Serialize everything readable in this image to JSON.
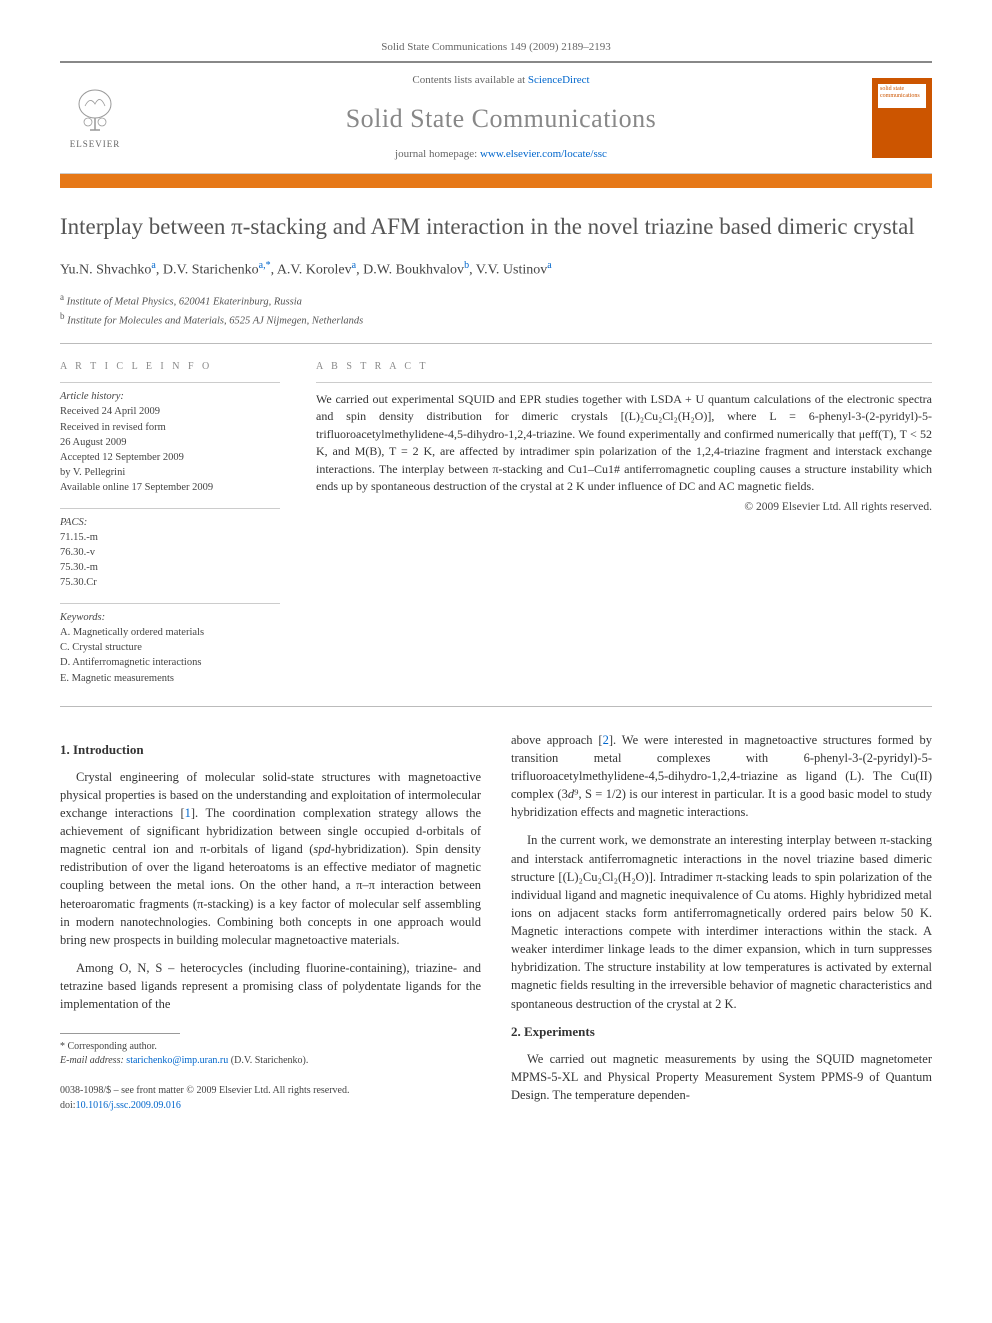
{
  "journal_ref": "Solid State Communications 149 (2009) 2189–2193",
  "header": {
    "contents_prefix": "Contents lists available at ",
    "contents_link": "ScienceDirect",
    "journal_name": "Solid State Communications",
    "homepage_prefix": "journal homepage: ",
    "homepage_url": "www.elsevier.com/locate/ssc",
    "publisher": "ELSEVIER",
    "cover_label": "solid state communications"
  },
  "title": "Interplay between π-stacking and AFM interaction in the novel triazine based dimeric crystal",
  "authors_html": "Yu.N. Shvachko<sup>a</sup>, D.V. Starichenko<sup>a,*</sup>, A.V. Korolev<sup>a</sup>, D.W. Boukhvalov<sup>b</sup>, V.V. Ustinov<sup>a</sup>",
  "affiliations": [
    {
      "sup": "a",
      "text": "Institute of Metal Physics, 620041 Ekaterinburg, Russia"
    },
    {
      "sup": "b",
      "text": "Institute for Molecules and Materials, 6525 AJ Nijmegen, Netherlands"
    }
  ],
  "article_info": {
    "heading": "A R T I C L E   I N F O",
    "history_label": "Article history:",
    "history": [
      "Received 24 April 2009",
      "Received in revised form",
      "26 August 2009",
      "Accepted 12 September 2009",
      "by V. Pellegrini",
      "Available online 17 September 2009"
    ],
    "pacs_label": "PACS:",
    "pacs": [
      "71.15.-m",
      "76.30.-v",
      "75.30.-m",
      "75.30.Cr"
    ],
    "keywords_label": "Keywords:",
    "keywords": [
      "A. Magnetically ordered materials",
      "C. Crystal structure",
      "D. Antiferromagnetic interactions",
      "E. Magnetic measurements"
    ]
  },
  "abstract": {
    "heading": "A B S T R A C T",
    "text": "We carried out experimental SQUID and EPR studies together with LSDA + U quantum calculations of the electronic spectra and spin density distribution for dimeric crystals [(L)₂Cu₂Cl₂(H₂O)], where L = 6-phenyl-3-(2-pyridyl)-5-trifluoroacetylmethylidene-4,5-dihydro-1,2,4-triazine. We found experimentally and confirmed numerically that μeff(T), T < 52 K, and M(B), T = 2 K, are affected by intradimer spin polarization of the 1,2,4-triazine fragment and interstack exchange interactions. The interplay between π-stacking and Cu1–Cu1# antiferromagnetic coupling causes a structure instability which ends up by spontaneous destruction of the crystal at 2 K under influence of DC and AC magnetic fields.",
    "copyright": "© 2009 Elsevier Ltd. All rights reserved."
  },
  "sections": {
    "intro_heading": "1. Introduction",
    "intro_p1": "Crystal engineering of molecular solid-state structures with magnetoactive physical properties is based on the understanding and exploitation of intermolecular exchange interactions [1]. The coordination complexation strategy allows the achievement of significant hybridization between single occupied d-orbitals of magnetic central ion and π-orbitals of ligand (spd-hybridization). Spin density redistribution of over the ligand heteroatoms is an effective mediator of magnetic coupling between the metal ions. On the other hand, a π–π interaction between heteroaromatic fragments (π-stacking) is a key factor of molecular self assembling in modern nanotechnologies. Combining both concepts in one approach would bring new prospects in building molecular magnetoactive materials.",
    "intro_p2": "Among O, N, S – heterocycles (including fluorine-containing), triazine- and tetrazine based ligands represent a promising class of polydentate ligands for the implementation of the",
    "intro_p3": "above approach [2]. We were interested in magnetoactive structures formed by transition metal complexes with 6-phenyl-3-(2-pyridyl)-5-trifluoroacetylmethylidene-4,5-dihydro-1,2,4-triazine as ligand (L). The Cu(II) complex (3d⁹, S = 1/2) is our interest in particular. It is a good basic model to study hybridization effects and magnetic interactions.",
    "intro_p4": "In the current work, we demonstrate an interesting interplay between π-stacking and interstack antiferromagnetic interactions in the novel triazine based dimeric structure [(L)₂Cu₂Cl₂(H₂O)]. Intradimer π-stacking leads to spin polarization of the individual ligand and magnetic inequivalence of Cu atoms. Highly hybridized metal ions on adjacent stacks form antiferromagnetically ordered pairs below 50 K. Magnetic interactions compete with interdimer interactions within the stack. A weaker interdimer linkage leads to the dimer expansion, which in turn suppresses hybridization. The structure instability at low temperatures is activated by external magnetic fields resulting in the irreversible behavior of magnetic characteristics and spontaneous destruction of the crystal at 2 K.",
    "exp_heading": "2. Experiments",
    "exp_p1": "We carried out magnetic measurements by using the SQUID magnetometer MPMS-5-XL and Physical Property Measurement System PPMS-9 of Quantum Design.  The temperature dependen-"
  },
  "footnote": {
    "corr": "* Corresponding author.",
    "email_label": "E-mail address:",
    "email": "starichenko@imp.uran.ru",
    "email_who": "(D.V. Starichenko)."
  },
  "footer": {
    "issn": "0038-1098/$ – see front matter © 2009 Elsevier Ltd. All rights reserved.",
    "doi_label": "doi:",
    "doi": "10.1016/j.ssc.2009.09.016"
  },
  "colors": {
    "orange_bar": "#e67817",
    "link": "#0066cc",
    "cover": "#cc5500",
    "rule": "#888888",
    "text": "#333333",
    "muted": "#666666"
  }
}
